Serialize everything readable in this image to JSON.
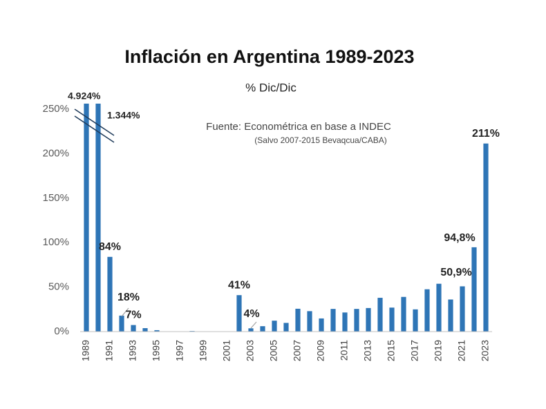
{
  "chart_data": {
    "type": "bar",
    "title": "Inflación en Argentina 1989-2023",
    "subtitle": "% Dic/Dic",
    "annotations": [
      "Fuente: Econométrica en base a INDEC",
      "(Salvo 2007-2015 Bevaqcua/CABA)"
    ],
    "categories": [
      "1989",
      null,
      "1991",
      null,
      "1993",
      null,
      "1995",
      null,
      "1997",
      null,
      "1999",
      null,
      "2001",
      null,
      "2003",
      null,
      "2005",
      null,
      "2007",
      null,
      "2009",
      null,
      "2011",
      null,
      "2013",
      null,
      "2015",
      null,
      "2017",
      null,
      "2019",
      null,
      "2021",
      null,
      "2023"
    ],
    "values": [
      4924,
      1344,
      84,
      18,
      7.4,
      3.9,
      1.6,
      0.1,
      0.3,
      0.7,
      0,
      0,
      0,
      41,
      3.7,
      6.1,
      12.3,
      9.8,
      25.7,
      23,
      14.8,
      25.5,
      21.5,
      25.5,
      26.5,
      38,
      27,
      39,
      25,
      47.6,
      53.8,
      36.1,
      50.9,
      94.8,
      211.4
    ],
    "value_labels": [
      "4.924%",
      "1.344%",
      "84%",
      "18%",
      "7%",
      null,
      null,
      null,
      null,
      null,
      null,
      null,
      null,
      "41%",
      "4%",
      null,
      null,
      null,
      null,
      null,
      null,
      null,
      null,
      null,
      null,
      null,
      null,
      null,
      null,
      null,
      null,
      null,
      "50,9%",
      "94,8%",
      "211%"
    ],
    "color": "#2e75b6",
    "ylim": [
      0,
      250
    ],
    "yticks": [
      {
        "value": 0,
        "label": "0%"
      },
      {
        "value": 50,
        "label": "50%"
      },
      {
        "value": 100,
        "label": "100%"
      },
      {
        "value": 150,
        "label": "150%"
      },
      {
        "value": 200,
        "label": "200%"
      },
      {
        "value": 250,
        "label": "250%"
      }
    ],
    "grid": false
  }
}
